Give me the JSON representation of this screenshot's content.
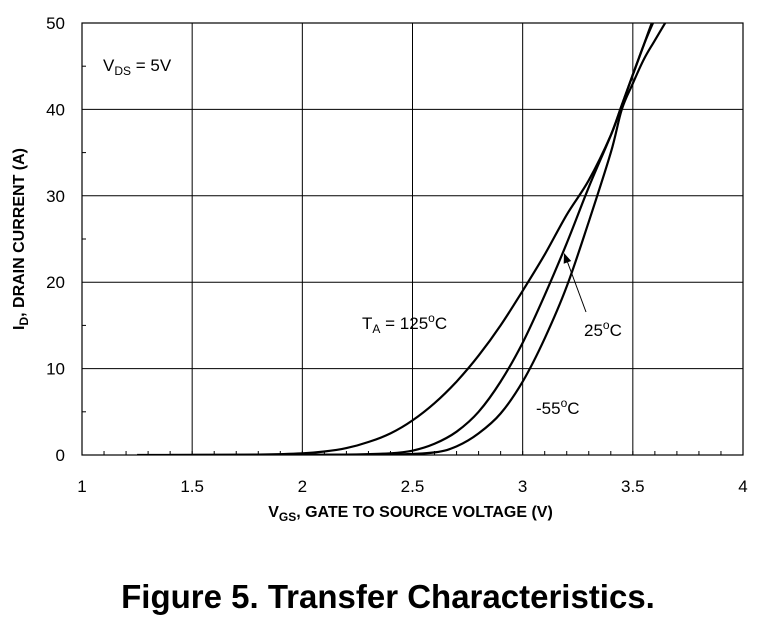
{
  "caption": "Figure 5. Transfer Characteristics.",
  "chart_data": {
    "type": "line",
    "xlabel": {
      "main": "V",
      "sub": "GS",
      "rest": ", GATE TO SOURCE VOLTAGE (V)"
    },
    "ylabel": {
      "main": "I",
      "sub": "D",
      "rest": ", DRAIN CURRENT (A)"
    },
    "xlim": [
      1,
      4
    ],
    "ylim": [
      0,
      50
    ],
    "xticks": [
      1,
      1.5,
      2,
      2.5,
      3,
      3.5,
      4
    ],
    "xtick_labels": [
      "1",
      "1.5",
      "2",
      "2.5",
      "3",
      "3.5",
      "4"
    ],
    "yticks": [
      0,
      10,
      20,
      30,
      40,
      50
    ],
    "ytick_labels": [
      "0",
      "10",
      "20",
      "30",
      "40",
      "50"
    ],
    "grid": true,
    "condition_label": {
      "main": "V",
      "sub": "DS",
      "rest": " = 5V"
    },
    "series": [
      {
        "name": "T_A = 125°C",
        "label": {
          "main": "T",
          "sub": "A",
          "mid": " = 125",
          "sup": "o",
          "end": "C"
        },
        "points": [
          [
            1.25,
            0
          ],
          [
            1.6,
            0.02
          ],
          [
            1.8,
            0.05
          ],
          [
            2.0,
            0.2
          ],
          [
            2.1,
            0.4
          ],
          [
            2.2,
            0.8
          ],
          [
            2.3,
            1.5
          ],
          [
            2.4,
            2.5
          ],
          [
            2.5,
            4.0
          ],
          [
            2.6,
            6.0
          ],
          [
            2.7,
            8.5
          ],
          [
            2.8,
            11.5
          ],
          [
            2.9,
            15.0
          ],
          [
            3.0,
            19.0
          ],
          [
            3.1,
            23.2
          ],
          [
            3.2,
            27.8
          ],
          [
            3.3,
            31.8
          ],
          [
            3.4,
            37.0
          ],
          [
            3.45,
            40.5
          ],
          [
            3.5,
            44.0
          ],
          [
            3.55,
            47.5
          ],
          [
            3.6,
            50.5
          ]
        ]
      },
      {
        "name": "25°C",
        "label": {
          "main": "25",
          "sup": "o",
          "end": "C"
        },
        "points": [
          [
            1.4,
            0
          ],
          [
            1.8,
            0.01
          ],
          [
            2.2,
            0.05
          ],
          [
            2.4,
            0.2
          ],
          [
            2.5,
            0.5
          ],
          [
            2.6,
            1.3
          ],
          [
            2.7,
            2.7
          ],
          [
            2.8,
            5.0
          ],
          [
            2.9,
            8.5
          ],
          [
            3.0,
            13.0
          ],
          [
            3.1,
            18.5
          ],
          [
            3.2,
            24.5
          ],
          [
            3.3,
            31.0
          ],
          [
            3.4,
            37.0
          ],
          [
            3.45,
            40.5
          ],
          [
            3.5,
            44.0
          ],
          [
            3.55,
            47.5
          ],
          [
            3.6,
            51.0
          ]
        ]
      },
      {
        "name": "-55°C",
        "label": {
          "main": "-55",
          "sup": "o",
          "end": "C"
        },
        "points": [
          [
            1.5,
            0
          ],
          [
            2.0,
            0.01
          ],
          [
            2.4,
            0.05
          ],
          [
            2.6,
            0.3
          ],
          [
            2.7,
            1.0
          ],
          [
            2.8,
            2.5
          ],
          [
            2.9,
            4.8
          ],
          [
            3.0,
            8.5
          ],
          [
            3.1,
            13.5
          ],
          [
            3.2,
            19.5
          ],
          [
            3.3,
            27.0
          ],
          [
            3.4,
            35.0
          ],
          [
            3.45,
            40.0
          ],
          [
            3.5,
            43.0
          ],
          [
            3.55,
            45.8
          ],
          [
            3.6,
            48.0
          ],
          [
            3.67,
            51.0
          ]
        ]
      }
    ]
  }
}
